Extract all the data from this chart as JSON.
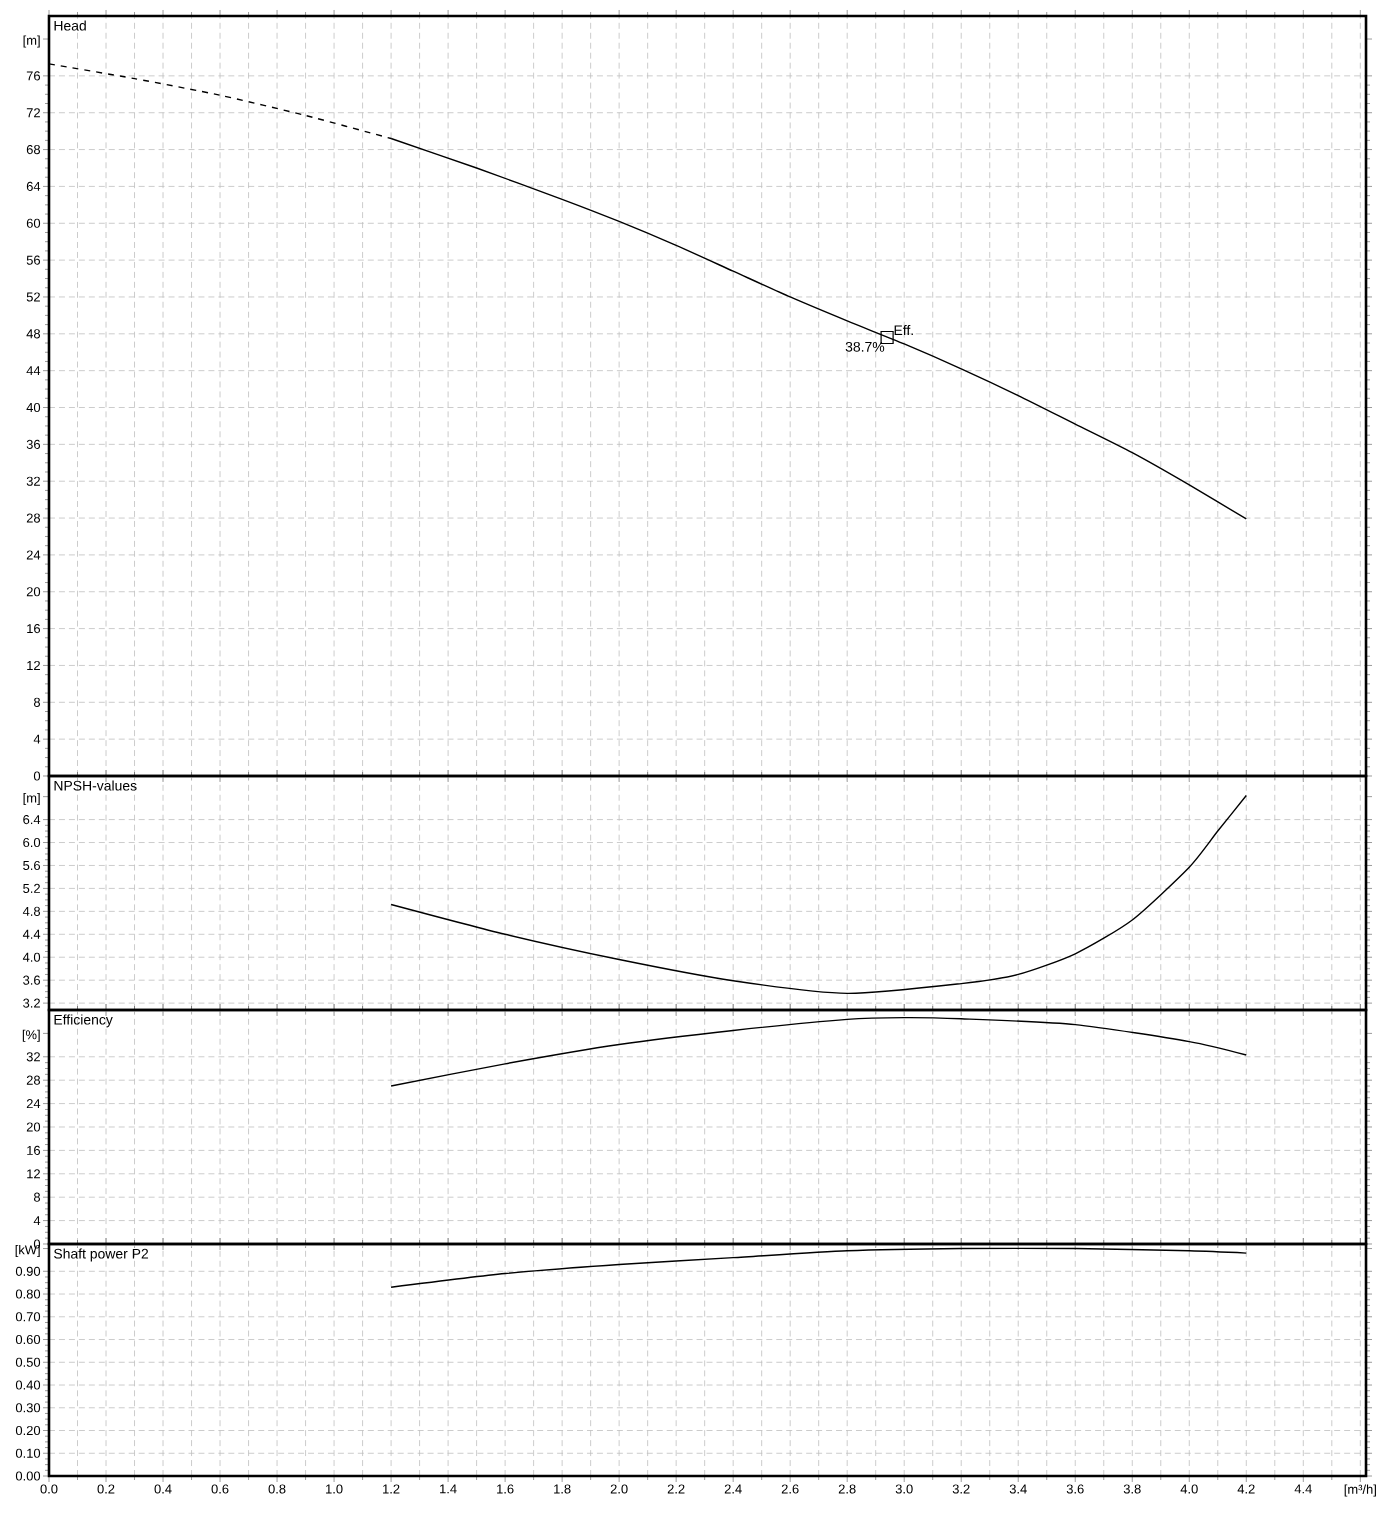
{
  "chart_data": [
    {
      "type": "line",
      "title": "Head",
      "xlim": [
        0,
        4.62
      ],
      "xticks": [
        0,
        0.2,
        0.4,
        0.6,
        0.8,
        1.0,
        1.2,
        1.4,
        1.6,
        1.8,
        2.0,
        2.2,
        2.4,
        2.6,
        2.8,
        3.0,
        3.2,
        3.4,
        3.6,
        3.8,
        4.0,
        4.2,
        4.4,
        4.6
      ],
      "ylim": [
        0,
        82.5
      ],
      "yticks": [
        0,
        4,
        8,
        12,
        16,
        20,
        24,
        28,
        32,
        36,
        40,
        44,
        48,
        52,
        56,
        60,
        64,
        68,
        72,
        76,
        {
          "value": 80,
          "label": "[m]"
        }
      ],
      "grid": true,
      "tick_labels": "y",
      "series": [
        {
          "color": "#000000",
          "line_style": "dashed",
          "x": [
            0,
            0.3,
            0.6,
            0.9,
            1.2
          ],
          "values": [
            77.3,
            75.7,
            73.9,
            71.7,
            69.2
          ]
        },
        {
          "color": "#000000",
          "line_style": "solid",
          "x": [
            1.2,
            1.5,
            1.8,
            2.0,
            2.2,
            2.4,
            2.6,
            2.8,
            3.0,
            3.2,
            3.4,
            3.6,
            3.8,
            4.0,
            4.2
          ],
          "values": [
            69.2,
            66.0,
            62.6,
            60.2,
            57.6,
            54.8,
            52.0,
            49.4,
            46.9,
            44.2,
            41.3,
            38.2,
            35.1,
            31.6,
            27.9
          ]
        },
        {
          "type": "scatter",
          "color": "#000000",
          "marker": "square",
          "x": [
            2.94
          ],
          "values": [
            47.6
          ]
        }
      ],
      "annotations": [
        {
          "text": "Eff.",
          "x": 2.94,
          "y": 47.6
        },
        {
          "text": "38.7%",
          "x": 2.94,
          "y": 47.6
        }
      ]
    },
    {
      "type": "line",
      "title": "NPSH-values",
      "xlim": [
        0,
        4.62
      ],
      "xticks": [
        0,
        0.2,
        0.4,
        0.6,
        0.8,
        1.0,
        1.2,
        1.4,
        1.6,
        1.8,
        2.0,
        2.2,
        2.4,
        2.6,
        2.8,
        3.0,
        3.2,
        3.4,
        3.6,
        3.8,
        4.0,
        4.2,
        4.4,
        4.6
      ],
      "ylim": [
        3.08,
        7.16
      ],
      "yticks": [
        3.2,
        3.6,
        {
          "value": 4.0,
          "label": "4.0"
        },
        4.4,
        4.8,
        5.2,
        5.6,
        {
          "value": 6.0,
          "label": "6.0"
        },
        6.4,
        {
          "value": 6.8,
          "label": "[m]"
        }
      ],
      "grid": true,
      "tick_labels": "y",
      "series": [
        {
          "color": "#000000",
          "x": [
            1.2,
            1.6,
            2.0,
            2.4,
            2.8,
            3.2,
            3.4,
            3.6,
            3.8,
            4.0,
            4.1,
            4.2
          ],
          "values": [
            4.92,
            4.4,
            3.96,
            3.59,
            3.37,
            3.54,
            3.7,
            4.06,
            4.65,
            5.57,
            6.2,
            6.82
          ]
        }
      ]
    },
    {
      "type": "line",
      "title": "Efficiency",
      "xlim": [
        0,
        4.62
      ],
      "xticks": [
        0,
        0.2,
        0.4,
        0.6,
        0.8,
        1.0,
        1.2,
        1.4,
        1.6,
        1.8,
        2.0,
        2.2,
        2.4,
        2.6,
        2.8,
        3.0,
        3.2,
        3.4,
        3.6,
        3.8,
        4.0,
        4.2,
        4.4,
        4.6
      ],
      "ylim": [
        0,
        40
      ],
      "yticks": [
        0,
        4,
        8,
        12,
        16,
        20,
        24,
        28,
        32,
        {
          "value": 36,
          "label": "[%]"
        }
      ],
      "grid": true,
      "tick_labels": "y",
      "series": [
        {
          "color": "#000000",
          "x": [
            1.2,
            1.6,
            2.0,
            2.4,
            2.8,
            3.0,
            3.2,
            3.6,
            4.0,
            4.2
          ],
          "values": [
            27.0,
            30.8,
            34.1,
            36.5,
            38.4,
            38.7,
            38.5,
            37.5,
            34.6,
            32.3
          ]
        }
      ]
    },
    {
      "type": "line",
      "title": "Shaft power P2",
      "xlim": [
        0,
        4.62
      ],
      "xticks": [
        {
          "value": 0,
          "label": "0.0"
        },
        0.2,
        0.4,
        0.6,
        0.8,
        {
          "value": 1.0,
          "label": "1.0"
        },
        1.2,
        1.4,
        1.6,
        1.8,
        {
          "value": 2.0,
          "label": "2.0"
        },
        2.2,
        2.4,
        2.6,
        2.8,
        {
          "value": 3.0,
          "label": "3.0"
        },
        3.2,
        3.4,
        3.6,
        3.8,
        {
          "value": 4.0,
          "label": "4.0"
        },
        4.2,
        4.4,
        {
          "value": 4.6,
          "label": "[m³/h]"
        }
      ],
      "ylim": [
        0,
        1.02
      ],
      "yticks": [
        {
          "value": 0,
          "label": "0.00"
        },
        {
          "value": 0.1,
          "label": "0.10"
        },
        {
          "value": 0.2,
          "label": "0.20"
        },
        {
          "value": 0.3,
          "label": "0.30"
        },
        {
          "value": 0.4,
          "label": "0.40"
        },
        {
          "value": 0.5,
          "label": "0.50"
        },
        {
          "value": 0.6,
          "label": "0.60"
        },
        {
          "value": 0.7,
          "label": "0.70"
        },
        {
          "value": 0.8,
          "label": "0.80"
        },
        {
          "value": 0.9,
          "label": "0.90"
        },
        {
          "value": 1.0,
          "label": "[kW]"
        }
      ],
      "grid": true,
      "series": [
        {
          "color": "#000000",
          "x": [
            1.2,
            1.6,
            2.0,
            2.4,
            2.8,
            3.2,
            3.6,
            4.0,
            4.2
          ],
          "values": [
            0.83,
            0.89,
            0.93,
            0.96,
            0.99,
            1.0,
            1.0,
            0.99,
            0.98
          ]
        }
      ]
    }
  ]
}
